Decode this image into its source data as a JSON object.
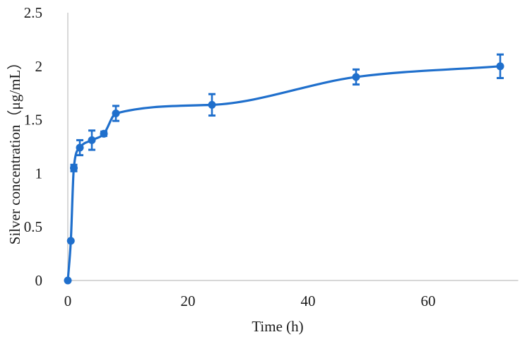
{
  "chart_data": {
    "type": "line",
    "title": "",
    "xlabel": "Time (h)",
    "ylabel": "Silver concentration（μg/mL）",
    "xlim": [
      0,
      75
    ],
    "ylim": [
      0,
      2.5
    ],
    "x_ticks": [
      0,
      20,
      40,
      60
    ],
    "y_ticks": [
      0,
      0.5,
      1,
      1.5,
      2,
      2.5
    ],
    "x_tick_labels": [
      "0",
      "20",
      "40",
      "60"
    ],
    "y_tick_labels": [
      "0",
      "0.5",
      "1",
      "1.5",
      "2",
      "2.5"
    ],
    "grid": false,
    "legend": null,
    "smoothed": true,
    "series": [
      {
        "name": "Silver concentration",
        "color": "#1f6fcc",
        "x": [
          0,
          0.5,
          1,
          2,
          4,
          6,
          8,
          24,
          48,
          72
        ],
        "values": [
          0,
          0.37,
          1.05,
          1.24,
          1.31,
          1.37,
          1.56,
          1.64,
          1.9,
          2.0
        ],
        "error": [
          0,
          0,
          0.03,
          0.07,
          0.09,
          0.02,
          0.07,
          0.1,
          0.07,
          0.11
        ]
      }
    ]
  },
  "colors": {
    "series": "#1f6fcc",
    "axis": "#bfbfbf",
    "text": "#1a1a1a"
  }
}
